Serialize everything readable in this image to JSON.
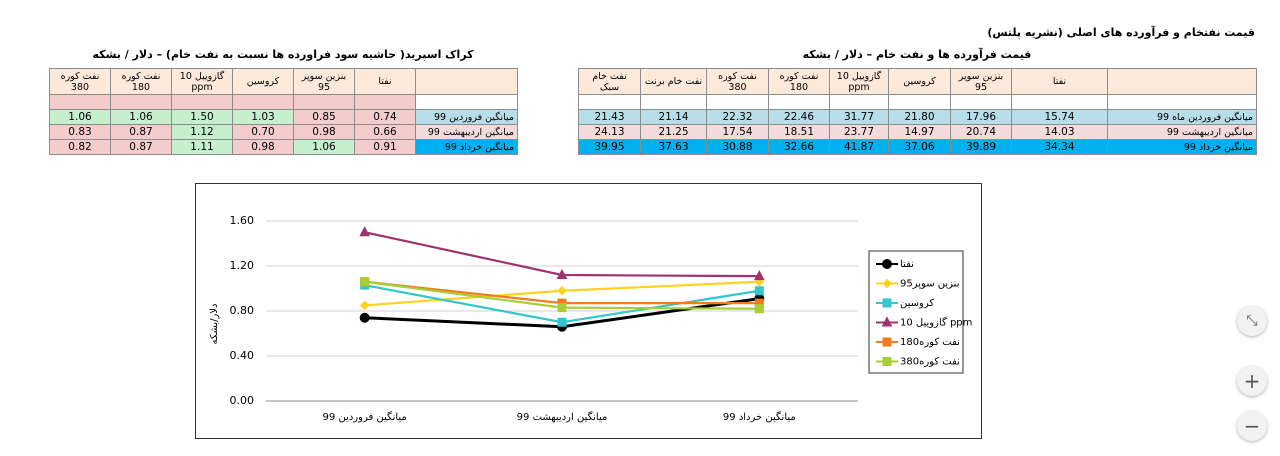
{
  "header": {
    "title": "قیمت نفتخام و فرآورده های اصلی (نشریه پلتس)"
  },
  "right_table": {
    "title": "قیمت فرآورده ها و نفت خام – دلار / بشکه",
    "columns": [
      "نفت خام سبک",
      "نفت خام برنت",
      "نفت کوره 380",
      "نفت کوره 180",
      "گازوییل 10 ppm",
      "کروسین",
      "بنزین سوپر 95",
      "نفتا"
    ],
    "rows": [
      {
        "label": "میانگین فروردین ماه 99",
        "color": "#b7dde8",
        "values": [
          "21.43",
          "21.14",
          "22.32",
          "22.46",
          "31.77",
          "21.80",
          "17.96",
          "15.74"
        ]
      },
      {
        "label": "میانگین اردیبهشت 99",
        "color": "#f2dcdb",
        "values": [
          "24.13",
          "21.25",
          "17.54",
          "18.51",
          "23.77",
          "14.97",
          "20.74",
          "14.03"
        ]
      },
      {
        "label": "میانگین خرداد 99",
        "color": "#00b0f0",
        "values": [
          "39.95",
          "37.63",
          "30.88",
          "32.66",
          "41.87",
          "37.06",
          "39.89",
          "34.34"
        ]
      }
    ]
  },
  "left_table": {
    "title": "کراک اسپرید( حاشیه سود فراورده ها نسبت به نفت خام) – دلار / بشکه",
    "columns": [
      "نفت کوره 380",
      "نفت کوره 180",
      "گازوییل 10 ppm",
      "کروسین",
      "بنزین سوپر 95",
      "نفتا"
    ],
    "rows": [
      {
        "label": "میانگین فروردین 99",
        "color": "#b7dde8",
        "values": [
          "1.06",
          "1.06",
          "1.50",
          "1.03",
          "0.85",
          "0.74"
        ]
      },
      {
        "label": "میانگین اردیبهشت 99",
        "color": "#f2dcdb",
        "values": [
          "0.83",
          "0.87",
          "1.12",
          "0.70",
          "0.98",
          "0.66"
        ]
      },
      {
        "label": "میانگین خرداد 99",
        "color": "#00b0f0",
        "values": [
          "0.82",
          "0.87",
          "1.11",
          "0.98",
          "1.06",
          "0.91"
        ]
      }
    ]
  },
  "chart_data": {
    "type": "line",
    "y_label": "دلار/بشکه",
    "categories": [
      "میانگین فروردین 99",
      "میانگین اردیبهشت 99",
      "میانگین خرداد 99"
    ],
    "ylim": [
      0,
      1.6
    ],
    "yticks": [
      {
        "value": 0,
        "label": "0.00"
      },
      {
        "value": 0.4,
        "label": "0.40"
      },
      {
        "value": 0.8,
        "label": "0.80"
      },
      {
        "value": 1.2,
        "label": "1.20"
      },
      {
        "value": 1.6,
        "label": "1.60"
      }
    ],
    "grid": true,
    "series": [
      {
        "name": "نفتا",
        "color": "#000000",
        "marker": "circle",
        "values": [
          0.74,
          0.66,
          0.91
        ]
      },
      {
        "name": "بنزین سوپر95",
        "color": "#ffd21f",
        "marker": "diamond",
        "values": [
          0.85,
          0.98,
          1.06
        ]
      },
      {
        "name": "کروسین",
        "color": "#33c6cc",
        "marker": "square",
        "values": [
          1.03,
          0.7,
          0.98
        ]
      },
      {
        "name": "گازوییل 10 ppm",
        "color": "#a0336c",
        "marker": "triangle",
        "values": [
          1.5,
          1.12,
          1.11
        ]
      },
      {
        "name": "نفت کوره180",
        "color": "#f47a20",
        "marker": "square",
        "values": [
          1.06,
          0.87,
          0.87
        ]
      },
      {
        "name": "نفت کوره380",
        "color": "#a6cf35",
        "marker": "square",
        "values": [
          1.06,
          0.83,
          0.82
        ]
      }
    ]
  }
}
